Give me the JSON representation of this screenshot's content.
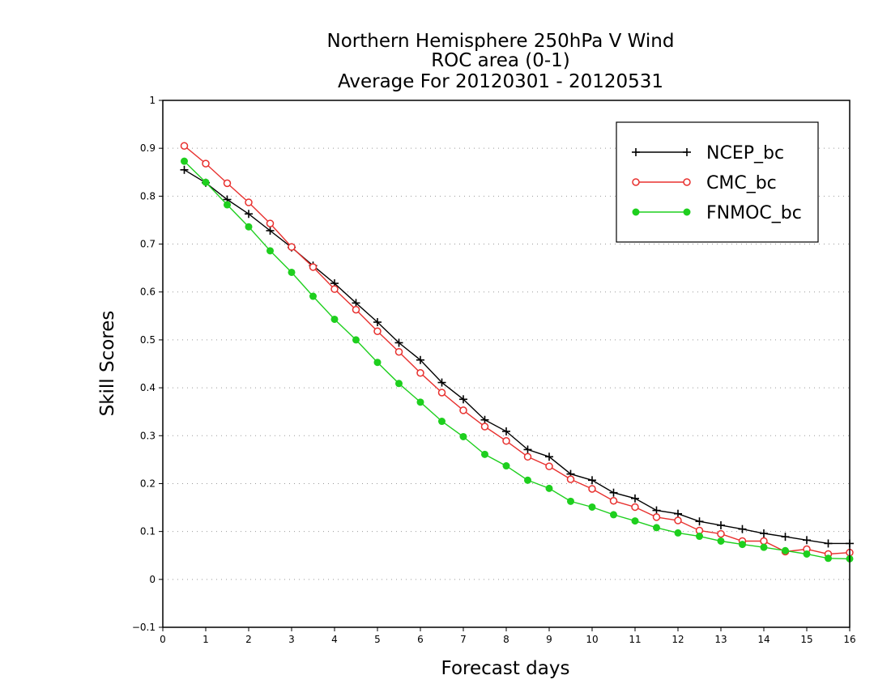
{
  "chart_data": {
    "type": "line",
    "title_lines": [
      "Northern Hemisphere 250hPa V Wind",
      "ROC area (0-1)",
      "Average For 20120301 - 20120531"
    ],
    "xlabel": "Forecast days",
    "ylabel": "Skill Scores",
    "xlim": [
      0,
      16
    ],
    "ylim": [
      -0.1,
      1
    ],
    "xticks": [
      0,
      1,
      2,
      3,
      4,
      5,
      6,
      7,
      8,
      9,
      10,
      11,
      12,
      13,
      14,
      15,
      16
    ],
    "yticks": [
      -0.1,
      0,
      0.1,
      0.2,
      0.3,
      0.4,
      0.5,
      0.6,
      0.7,
      0.8,
      0.9,
      1
    ],
    "ytick_labels": [
      "−0.1",
      "0",
      "0.1",
      "0.2",
      "0.3",
      "0.4",
      "0.5",
      "0.6",
      "0.7",
      "0.8",
      "0.9",
      "1"
    ],
    "grid": true,
    "legend_position": "top-right",
    "x": [
      0.5,
      1,
      1.5,
      2,
      2.5,
      3,
      3.5,
      4,
      4.5,
      5,
      5.5,
      6,
      6.5,
      7,
      7.5,
      8,
      8.5,
      9,
      9.5,
      10,
      10.5,
      11,
      11.5,
      12,
      12.5,
      13,
      13.5,
      14,
      14.5,
      15,
      15.5,
      16
    ],
    "series": [
      {
        "name": "NCEP_bc",
        "color": "#000000",
        "marker": "plus",
        "values": [
          0.855,
          0.828,
          0.793,
          0.763,
          0.728,
          0.693,
          0.655,
          0.618,
          0.577,
          0.537,
          0.494,
          0.458,
          0.411,
          0.376,
          0.333,
          0.309,
          0.271,
          0.256,
          0.22,
          0.207,
          0.181,
          0.169,
          0.144,
          0.137,
          0.121,
          0.113,
          0.105,
          0.096,
          0.089,
          0.082,
          0.075,
          0.075
        ]
      },
      {
        "name": "CMC_bc",
        "color": "#e8302e",
        "marker": "open-circle",
        "values": [
          0.905,
          0.868,
          0.827,
          0.787,
          0.743,
          0.694,
          0.652,
          0.606,
          0.563,
          0.518,
          0.475,
          0.431,
          0.39,
          0.353,
          0.319,
          0.289,
          0.256,
          0.236,
          0.209,
          0.189,
          0.164,
          0.151,
          0.13,
          0.123,
          0.102,
          0.095,
          0.08,
          0.08,
          0.058,
          0.063,
          0.053,
          0.056
        ]
      },
      {
        "name": "FNMOC_bc",
        "color": "#1ecf1e",
        "marker": "filled-circle",
        "values": [
          0.873,
          0.829,
          0.782,
          0.736,
          0.686,
          0.641,
          0.591,
          0.543,
          0.5,
          0.453,
          0.409,
          0.37,
          0.33,
          0.298,
          0.261,
          0.237,
          0.207,
          0.19,
          0.163,
          0.151,
          0.135,
          0.122,
          0.108,
          0.097,
          0.09,
          0.08,
          0.073,
          0.067,
          0.06,
          0.053,
          0.044,
          0.043
        ]
      }
    ]
  }
}
